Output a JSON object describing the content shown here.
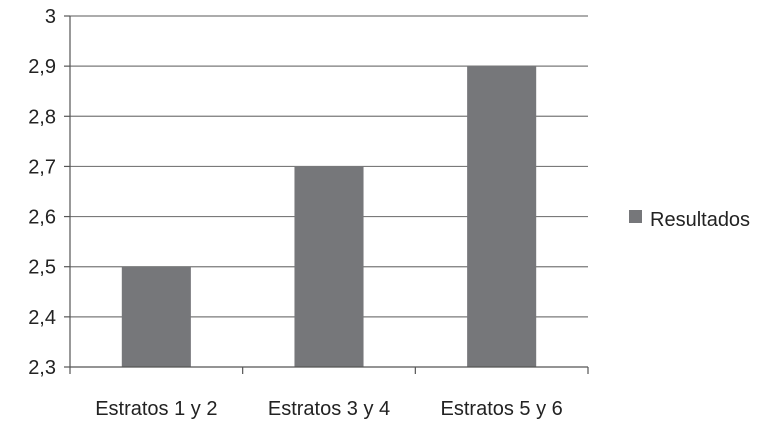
{
  "chart_data": {
    "type": "bar",
    "categories": [
      "Estratos 1 y 2",
      "Estratos 3 y 4",
      "Estratos 5 y 6"
    ],
    "series": [
      {
        "name": "Resultados",
        "values": [
          2.5,
          2.7,
          2.9
        ],
        "color": "#76777a"
      }
    ],
    "ylim": [
      2.3,
      3.0
    ],
    "yticks": [
      2.3,
      2.4,
      2.5,
      2.6,
      2.7,
      2.8,
      2.9,
      3.0
    ],
    "ytick_labels": [
      "2,3",
      "2,4",
      "2,5",
      "2,6",
      "2,7",
      "2,8",
      "2,9",
      "3"
    ],
    "grid": true,
    "legend_position": "right",
    "title": "",
    "xlabel": "",
    "ylabel": ""
  }
}
